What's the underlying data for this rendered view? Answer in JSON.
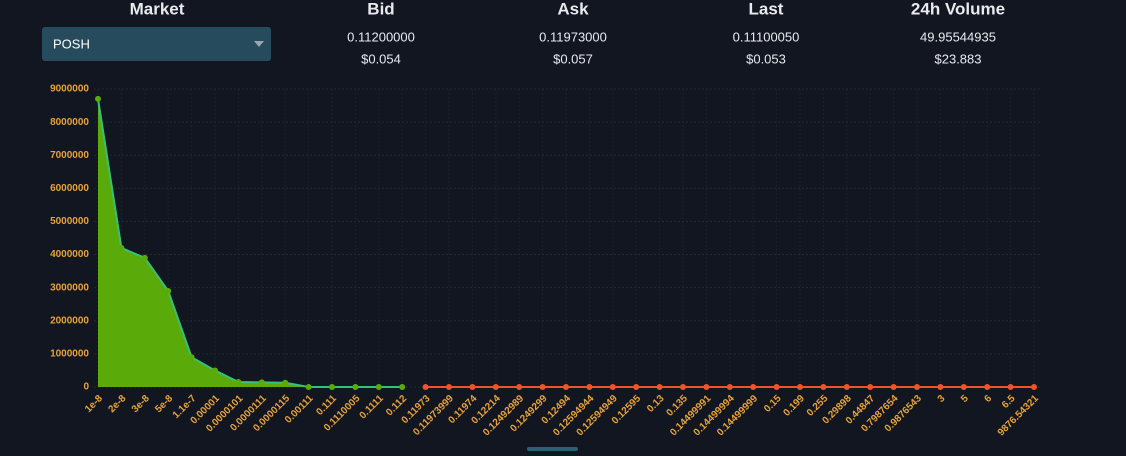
{
  "header": {
    "market": {
      "title": "Market",
      "selected": "POSH"
    },
    "columns": [
      {
        "title": "Bid",
        "price": "0.11200000",
        "usd": "$0.054"
      },
      {
        "title": "Ask",
        "price": "0.11973000",
        "usd": "$0.057"
      },
      {
        "title": "Last",
        "price": "0.11100050",
        "usd": "$0.053"
      },
      {
        "title": "24h Volume",
        "price": "49.95544935",
        "usd": "$23.883"
      }
    ]
  },
  "chart_data": {
    "type": "area",
    "categories": [
      "1e-8",
      "2e-8",
      "3e-8",
      "5e-8",
      "1.1e-7",
      "0.00001",
      "0.0000101",
      "0.0000111",
      "0.0000115",
      "0.00111",
      "0.111",
      "0.1110005",
      "0.1111",
      "0.112",
      "0.11973",
      "0.11973999",
      "0.11974",
      "0.12214",
      "0.12492989",
      "0.1249299",
      "0.12494",
      "0.12594944",
      "0.12594949",
      "0.12595",
      "0.13",
      "0.135",
      "0.14499991",
      "0.14499994",
      "0.14499999",
      "0.15",
      "0.199",
      "0.255",
      "0.29898",
      "0.44847",
      "0.7987654",
      "0.9876543",
      "3",
      "5",
      "6",
      "6.5",
      "9876.54321"
    ],
    "series": [
      {
        "color": "#5aab0a",
        "line_color": "#34c27a",
        "filled": true,
        "values": [
          8700000,
          4200000,
          3900000,
          2900000,
          900000,
          500000,
          150000,
          140000,
          130000,
          0,
          0,
          0,
          0,
          0,
          null,
          null,
          null,
          null,
          null,
          null,
          null,
          null,
          null,
          null,
          null,
          null,
          null,
          null,
          null,
          null,
          null,
          null,
          null,
          null,
          null,
          null,
          null,
          null,
          null,
          null,
          null
        ]
      },
      {
        "color": "#f0532b",
        "line_color": "#f0532b",
        "filled": false,
        "values": [
          null,
          null,
          null,
          null,
          null,
          null,
          null,
          null,
          null,
          null,
          null,
          null,
          null,
          null,
          0,
          0,
          0,
          0,
          0,
          0,
          0,
          0,
          0,
          0,
          0,
          0,
          0,
          0,
          0,
          0,
          0,
          0,
          0,
          0,
          0,
          0,
          0,
          0,
          0,
          0,
          0
        ]
      }
    ],
    "ylim": [
      0,
      9000000
    ],
    "yticks": [
      0,
      1000000,
      2000000,
      3000000,
      4000000,
      5000000,
      6000000,
      7000000,
      8000000,
      9000000
    ],
    "grid": true
  }
}
